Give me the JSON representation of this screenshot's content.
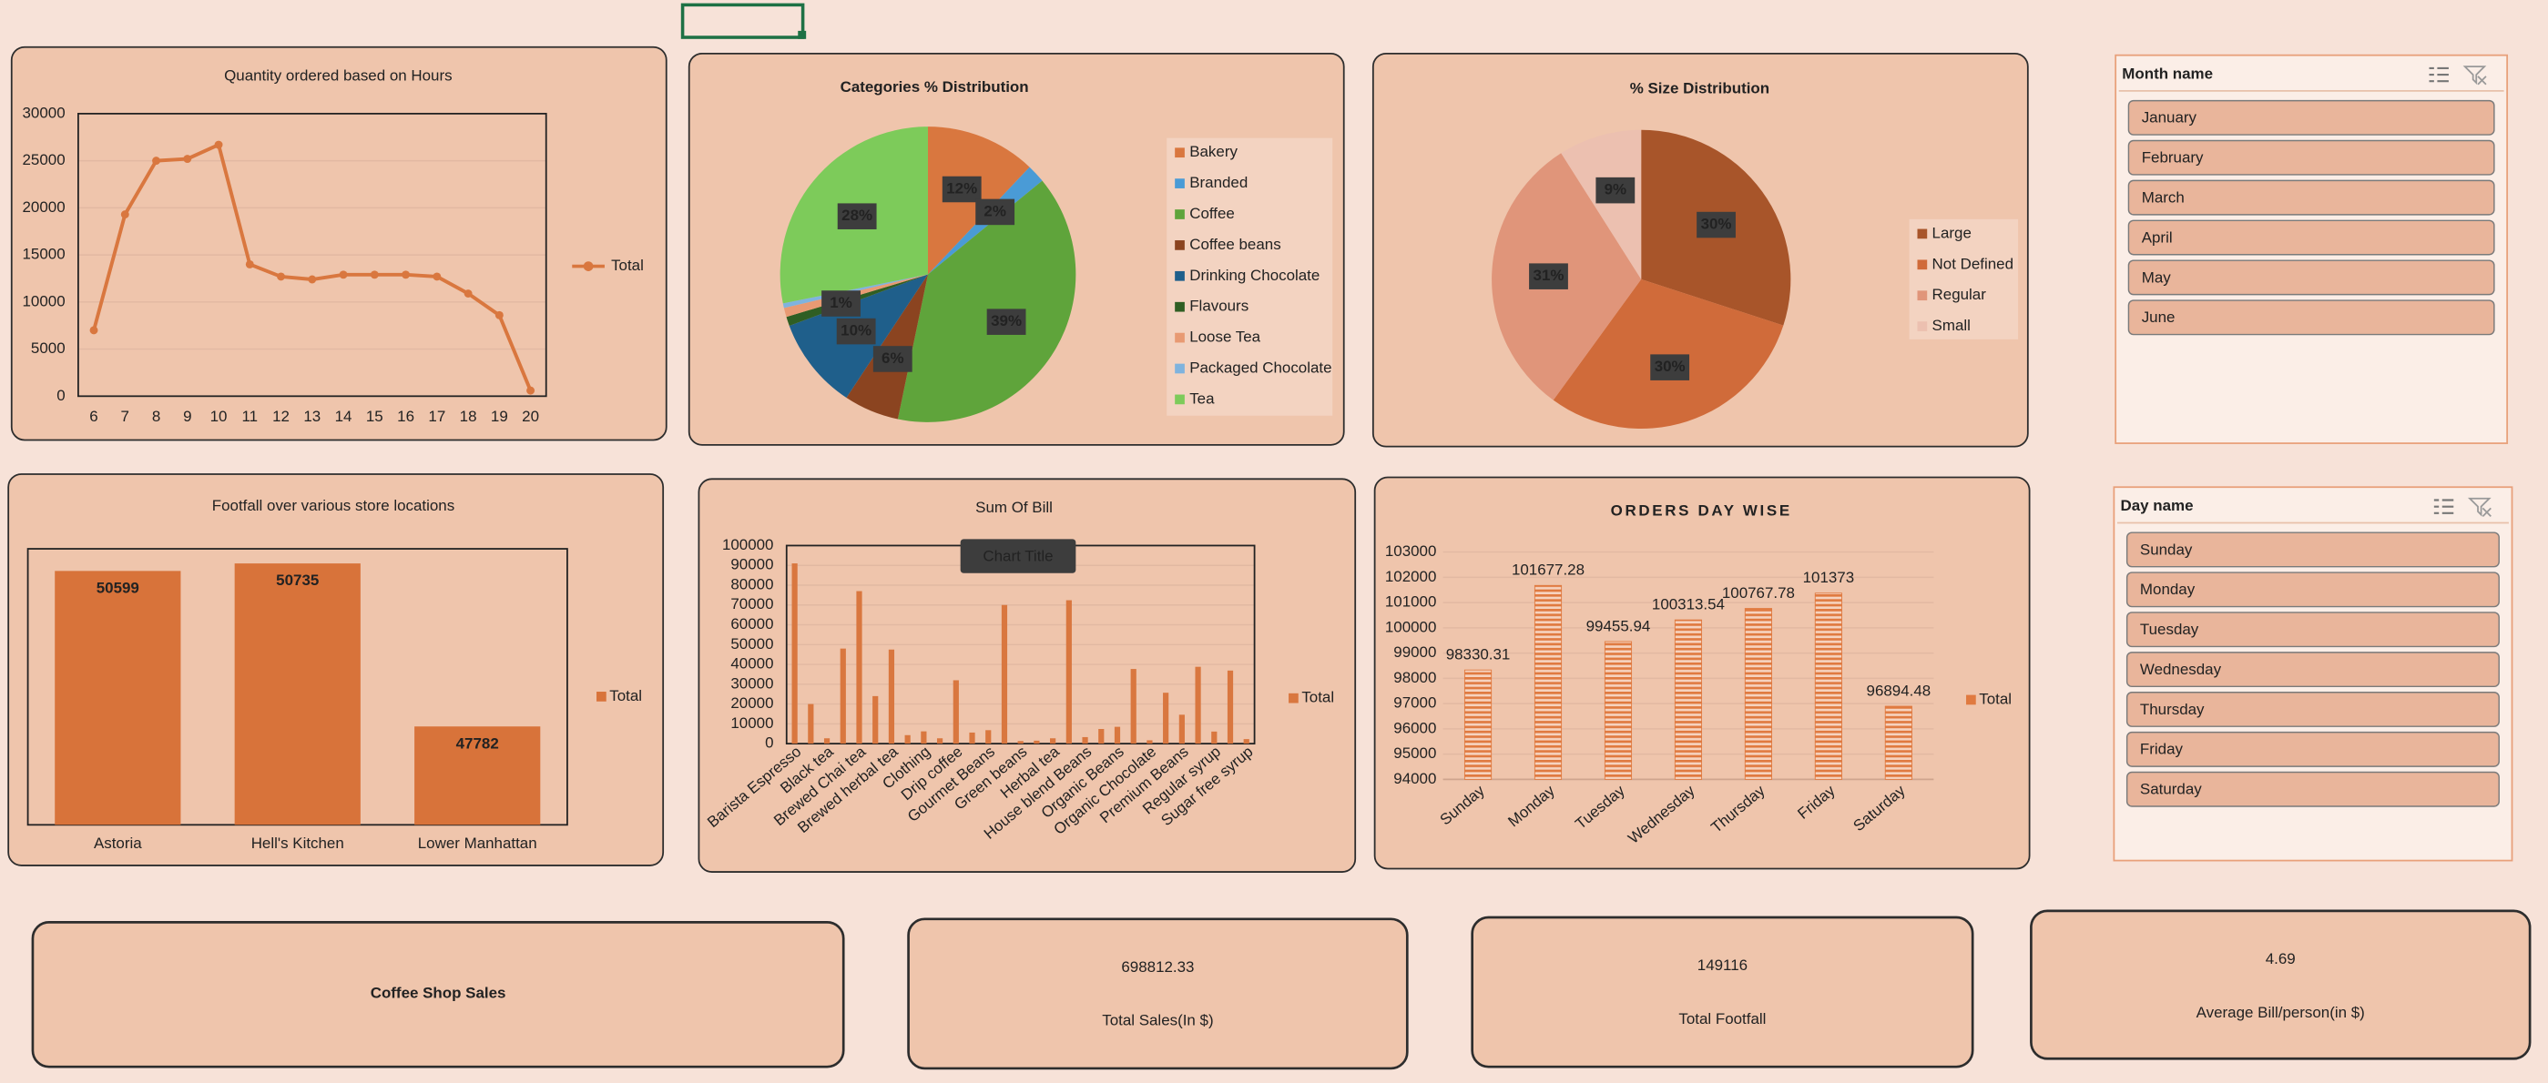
{
  "dashboard_title": "Coffee Shop Sales",
  "chart_data": [
    {
      "type": "line",
      "title": "Quantity ordered based on Hours",
      "categories": [
        6,
        7,
        8,
        9,
        10,
        11,
        12,
        13,
        14,
        15,
        16,
        17,
        18,
        19,
        20
      ],
      "series": [
        {
          "name": "Total",
          "color": "#d9773f",
          "values": [
            7000,
            19300,
            25000,
            25200,
            26700,
            14000,
            12700,
            12400,
            12900,
            12900,
            12900,
            12700,
            10900,
            8600,
            600
          ]
        }
      ],
      "ylim": [
        0,
        30000
      ],
      "yticks": [
        0,
        5000,
        10000,
        15000,
        20000,
        25000,
        30000
      ],
      "grid": true,
      "legend": "right"
    },
    {
      "type": "pie",
      "title": "Categories % Distribution",
      "categories": [
        "Bakery",
        "Branded",
        "Coffee",
        "Coffee beans",
        "Drinking Chocolate",
        "Flavours",
        "Loose Tea",
        "Packaged Chocolate",
        "Tea"
      ],
      "values": [
        12,
        2,
        39,
        6,
        10,
        1,
        1,
        0.5,
        28
      ],
      "value_labels": [
        "12%",
        "2%",
        "39%",
        "6%",
        "10%",
        "1%",
        null,
        null,
        "28%"
      ],
      "colors": [
        "#d9773f",
        "#4a9bd6",
        "#5fa43b",
        "#8b4420",
        "#1f5f8b",
        "#2f5e23",
        "#e89a73",
        "#7fb3de",
        "#7dcb5a"
      ],
      "legend": "right"
    },
    {
      "type": "pie",
      "title": "% Size Distribution",
      "categories": [
        "Large",
        "Not Defined",
        "Regular",
        "Small"
      ],
      "values": [
        30,
        30,
        31,
        9
      ],
      "value_labels": [
        "30%",
        "30%",
        "31%",
        "9%"
      ],
      "colors": [
        "#a8552a",
        "#d06b3a",
        "#e0957a",
        "#ecc0b0"
      ],
      "legend": "right"
    },
    {
      "type": "bar",
      "title": "Footfall over various store locations",
      "categories": [
        "Astoria",
        "Hell's Kitchen",
        "Lower Manhattan"
      ],
      "series": [
        {
          "name": "Total",
          "color": "#d8733a",
          "values": [
            50599,
            50735,
            47782
          ]
        }
      ],
      "ylim": [
        46000,
        51000
      ],
      "data_labels": true,
      "legend": "right"
    },
    {
      "type": "bar",
      "title": "Sum Of Bill",
      "tooltip": "Chart Title",
      "categories": [
        "Barista Espresso",
        null,
        "Black tea",
        null,
        "Brewed Chai tea",
        null,
        "Brewed herbal tea",
        null,
        "Clothing",
        null,
        "Drip coffee",
        null,
        "Gourmet Beans",
        null,
        "Green beans",
        null,
        "Herbal tea",
        null,
        "House blend Beans",
        null,
        "Organic Beans",
        null,
        "Organic Chocolate",
        null,
        "Premium Beans",
        null,
        "Regular syrup",
        null,
        "Sugar free syrup"
      ],
      "series": [
        {
          "name": "Total",
          "color": "#d9773f",
          "values": [
            91000,
            20000,
            2700,
            48000,
            77000,
            24000,
            47500,
            4300,
            6200,
            2700,
            32000,
            5600,
            6800,
            70000,
            1300,
            1500,
            2700,
            72400,
            3300,
            7400,
            8500,
            37700,
            1700,
            25700,
            14600,
            38800,
            6100,
            36900,
            2300
          ]
        }
      ],
      "ylim": [
        0,
        100000
      ],
      "yticks": [
        0,
        10000,
        20000,
        30000,
        40000,
        50000,
        60000,
        70000,
        80000,
        90000,
        100000
      ],
      "grid": true,
      "legend": "right"
    },
    {
      "type": "bar",
      "title": "ORDERS DAY WISE",
      "categories": [
        "Sunday",
        "Monday",
        "Tuesday",
        "Wednesday",
        "Thursday",
        "Friday",
        "Saturday"
      ],
      "series": [
        {
          "name": "Total",
          "color": "#e07a40",
          "values": [
            98330.31,
            101677.28,
            99455.94,
            100313.54,
            100767.78,
            101373,
            96894.48
          ]
        }
      ],
      "ylim": [
        94000,
        103000
      ],
      "yticks": [
        94000,
        95000,
        96000,
        97000,
        98000,
        99000,
        100000,
        101000,
        102000,
        103000
      ],
      "grid": true,
      "data_labels": true,
      "bar_style": "hatched",
      "legend": "right"
    }
  ],
  "slicers": [
    {
      "title": "Month name",
      "items": [
        "January",
        "February",
        "March",
        "April",
        "May",
        "June"
      ]
    },
    {
      "title": "Day name",
      "items": [
        "Sunday",
        "Monday",
        "Tuesday",
        "Wednesday",
        "Thursday",
        "Friday",
        "Saturday"
      ]
    }
  ],
  "kpis": [
    {
      "value": 698812.33,
      "label": "Total Sales(In $)"
    },
    {
      "value": 149116,
      "label": "Total Footfall"
    },
    {
      "value": 4.69,
      "label": "Average Bill/person(in $)"
    }
  ]
}
